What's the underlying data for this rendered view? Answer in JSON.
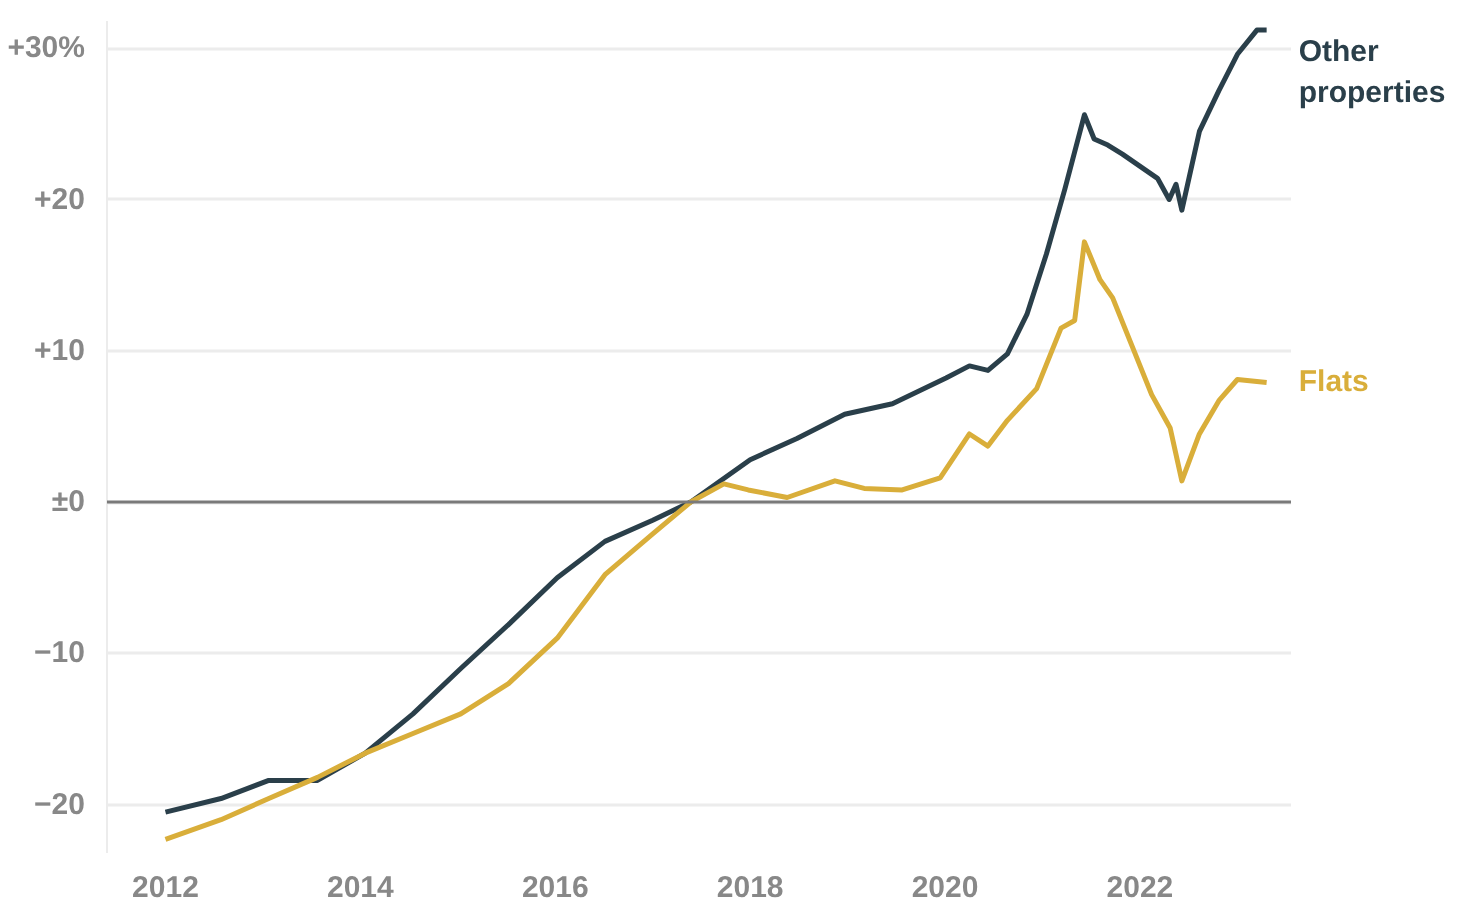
{
  "chart_data": {
    "type": "line",
    "grid": "y",
    "xlim": [
      2011.4,
      2023.55
    ],
    "ylim": [
      -23.2,
      31.8
    ],
    "xticks": [
      2012,
      2014,
      2016,
      2018,
      2020,
      2022
    ],
    "yticks": [
      {
        "value": 30,
        "label": "+30%"
      },
      {
        "value": 20,
        "label": "+20"
      },
      {
        "value": 10,
        "label": "+10"
      },
      {
        "value": 0,
        "label": "±0"
      },
      {
        "value": -10,
        "label": "−10"
      },
      {
        "value": -20,
        "label": "−20"
      }
    ],
    "ref_lines": [
      {
        "axis": "y",
        "value": 0,
        "label": null,
        "color": "#7a7a7a"
      }
    ],
    "series": [
      {
        "name": "Other properties",
        "color": "#2a3f4a",
        "x": [
          2012.0,
          2012.57,
          2013.06,
          2013.56,
          2014.05,
          2014.54,
          2015.03,
          2015.52,
          2016.02,
          2016.51,
          2017.0,
          2017.39,
          2018.0,
          2018.48,
          2018.97,
          2019.46,
          2020.01,
          2020.25,
          2020.44,
          2020.64,
          2020.84,
          2021.04,
          2021.23,
          2021.43,
          2021.53,
          2021.67,
          2021.82,
          2022.18,
          2022.3,
          2022.37,
          2022.43,
          2022.61,
          2022.81,
          2023.0,
          2023.2,
          2023.3
        ],
        "values": [
          -20.5,
          -19.6,
          -18.4,
          -18.4,
          -16.6,
          -14.0,
          -11.0,
          -8.1,
          -5.0,
          -2.6,
          -1.2,
          0.0,
          2.8,
          4.2,
          5.8,
          6.5,
          8.2,
          9.0,
          8.7,
          9.8,
          12.4,
          16.4,
          20.7,
          25.6,
          24.0,
          23.6,
          23.0,
          21.4,
          20.0,
          21.0,
          19.3,
          24.5,
          27.2,
          29.6,
          31.2,
          31.2
        ]
      },
      {
        "name": "Flats",
        "color": "#d9ae3a",
        "x": [
          2012.0,
          2012.57,
          2013.06,
          2013.56,
          2014.05,
          2014.54,
          2015.03,
          2015.52,
          2016.02,
          2016.51,
          2017.0,
          2017.39,
          2017.73,
          2017.98,
          2018.38,
          2018.87,
          2019.17,
          2019.56,
          2019.95,
          2020.25,
          2020.44,
          2020.64,
          2020.94,
          2021.19,
          2021.33,
          2021.43,
          2021.59,
          2021.72,
          2022.12,
          2022.31,
          2022.43,
          2022.61,
          2022.81,
          2023.0,
          2023.3
        ],
        "values": [
          -22.3,
          -21.0,
          -19.6,
          -18.2,
          -16.6,
          -15.3,
          -14.0,
          -12.0,
          -9.0,
          -4.8,
          -2.1,
          0.0,
          1.2,
          0.8,
          0.3,
          1.4,
          0.9,
          0.8,
          1.6,
          4.5,
          3.7,
          5.4,
          7.5,
          11.5,
          12.0,
          17.2,
          14.7,
          13.5,
          7.1,
          4.9,
          1.4,
          4.5,
          6.7,
          8.1,
          7.9
        ]
      }
    ]
  }
}
